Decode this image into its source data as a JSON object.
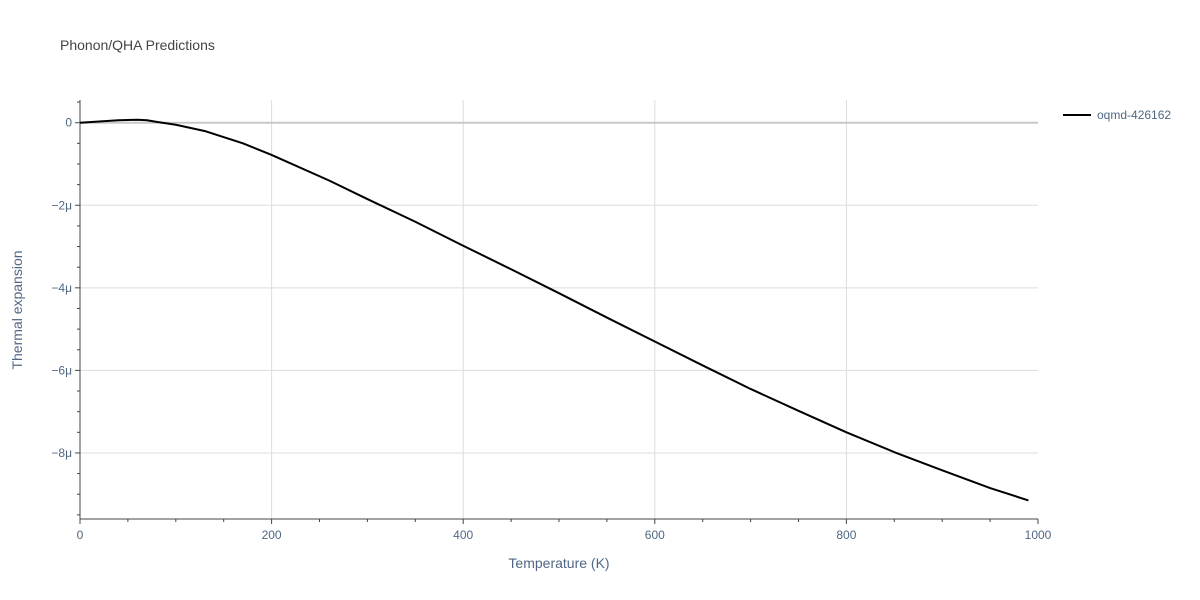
{
  "chart_data": {
    "type": "line",
    "title": "Phonon/QHA Predictions",
    "xlabel": "Temperature (K)",
    "ylabel": "Thermal expansion",
    "xlim": [
      0,
      1000
    ],
    "ylim": [
      -9.6,
      0.55
    ],
    "x_ticks": [
      0,
      200,
      400,
      600,
      800,
      1000
    ],
    "x_tick_labels": [
      "0",
      "200",
      "400",
      "600",
      "800",
      "1000"
    ],
    "y_ticks": [
      0,
      -2,
      -4,
      -6,
      -8
    ],
    "y_tick_labels": [
      "0",
      "−2μ",
      "−4μ",
      "−6μ",
      "−8μ"
    ],
    "y_unit_note": "values in units of 1e-6 (μ)",
    "grid": true,
    "legend_position": "top-right",
    "series": [
      {
        "name": "oqmd-426162",
        "color": "#000000",
        "x": [
          0,
          20,
          40,
          60,
          70,
          80,
          100,
          130,
          170,
          200,
          260,
          300,
          350,
          400,
          450,
          500,
          550,
          600,
          650,
          700,
          750,
          800,
          850,
          900,
          950,
          990
        ],
        "y": [
          0,
          0.03,
          0.06,
          0.07,
          0.06,
          0.02,
          -0.05,
          -0.2,
          -0.5,
          -0.78,
          -1.4,
          -1.85,
          -2.4,
          -2.98,
          -3.55,
          -4.13,
          -4.72,
          -5.3,
          -5.88,
          -6.45,
          -6.98,
          -7.5,
          -7.98,
          -8.42,
          -8.85,
          -9.15
        ]
      }
    ]
  }
}
